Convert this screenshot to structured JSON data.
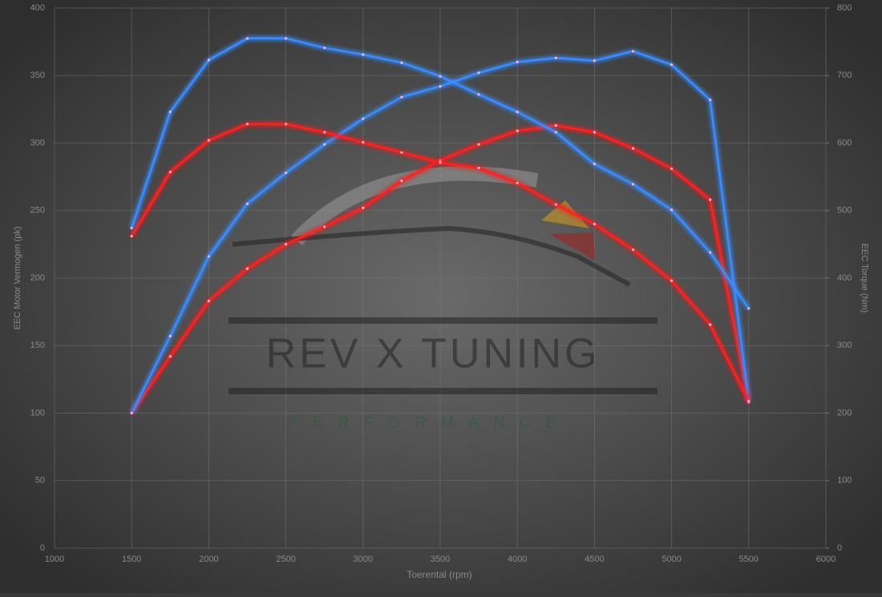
{
  "chart_data": {
    "type": "line",
    "x_label": "Toerental (rpm)",
    "y_label": "EEC Motor Vermogen (pk)",
    "y2_label": "EEC Torque (Nm)",
    "watermark": "REV X TUNING",
    "watermark_sub": "PERFORMANCE",
    "x": [
      1500,
      1750,
      2000,
      2250,
      2500,
      2750,
      3000,
      3250,
      3500,
      3750,
      4000,
      4250,
      4500,
      4750,
      5000,
      5250,
      5500
    ],
    "xlim": [
      1000,
      6000
    ],
    "xticks": [
      1000,
      1500,
      2000,
      2500,
      3000,
      3500,
      4000,
      4500,
      5000,
      5500,
      6000
    ],
    "ylim": [
      0,
      400
    ],
    "yticks": [
      0,
      50,
      100,
      150,
      200,
      250,
      300,
      350,
      400
    ],
    "y2lim": [
      0,
      800
    ],
    "y2ticks": [
      0,
      100,
      200,
      300,
      400,
      500,
      600,
      700,
      800
    ],
    "grid": true,
    "series": [
      {
        "color": "#ff2020",
        "values": [
          100,
          142,
          183,
          207,
          225,
          238,
          252,
          272,
          287,
          299,
          309,
          313,
          308,
          296,
          281,
          258,
          108
        ]
      },
      {
        "color": "#3a8cff",
        "values": [
          100,
          157,
          216,
          255,
          278,
          299,
          318,
          334,
          342,
          352,
          360,
          363,
          361,
          368,
          358,
          332,
          109
        ]
      },
      {
        "color": "#ff2020",
        "axis": "y2",
        "values": [
          462,
          557,
          604,
          628,
          628,
          616,
          601,
          586,
          571,
          563,
          541,
          509,
          480,
          442,
          396,
          331,
          218
        ]
      },
      {
        "color": "#3a8cff",
        "axis": "y2",
        "values": [
          474,
          646,
          723,
          755,
          755,
          741,
          731,
          719,
          699,
          672,
          646,
          616,
          569,
          539,
          501,
          438,
          355
        ]
      }
    ]
  }
}
